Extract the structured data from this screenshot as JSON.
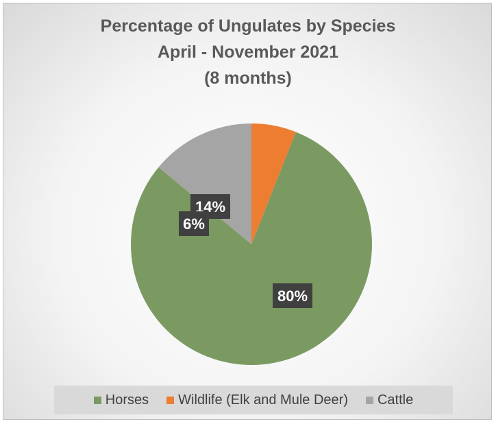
{
  "chart_data": {
    "type": "pie",
    "title": [
      "Percentage of Ungulates by Species",
      "April - November 2021",
      "(8 months)"
    ],
    "slices": [
      {
        "name": "Cattle",
        "value": 14,
        "label": "14%",
        "color": "#a5a5a5"
      },
      {
        "name": "Horses",
        "value": 80,
        "label": "80%",
        "color": "#7a9a62"
      },
      {
        "name": "Wildlife (Elk and Mule Deer)",
        "value": 6,
        "label": "6%",
        "color": "#ed7d31"
      }
    ],
    "legend_order": [
      "Horses",
      "Wildlife (Elk and Mule Deer)",
      "Cattle"
    ],
    "legend_position": "bottom",
    "label_background": "#404040",
    "label_text_color": "#ffffff"
  }
}
